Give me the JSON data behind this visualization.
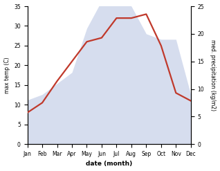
{
  "months": [
    "Jan",
    "Feb",
    "Mar",
    "Apr",
    "May",
    "Jun",
    "Jul",
    "Aug",
    "Sep",
    "Oct",
    "Nov",
    "Dec"
  ],
  "temperature": [
    8,
    10.5,
    16,
    21,
    26,
    27,
    32,
    32,
    33,
    25,
    13,
    11
  ],
  "precipitation": [
    8,
    9,
    11,
    13,
    21,
    26,
    27,
    25,
    20,
    19,
    19,
    9
  ],
  "temp_color": "#c0392b",
  "precip_color": "#c5cfe8",
  "ylabel_left": "max temp (C)",
  "ylabel_right": "med. precipitation (kg/m2)",
  "xlabel": "date (month)",
  "ylim_left": [
    0,
    35
  ],
  "ylim_right": [
    0,
    25
  ],
  "yticks_left": [
    0,
    5,
    10,
    15,
    20,
    25,
    30,
    35
  ],
  "yticks_right": [
    0,
    5,
    10,
    15,
    20,
    25
  ],
  "temp_linewidth": 1.6,
  "figsize": [
    3.18,
    2.47
  ],
  "dpi": 100
}
